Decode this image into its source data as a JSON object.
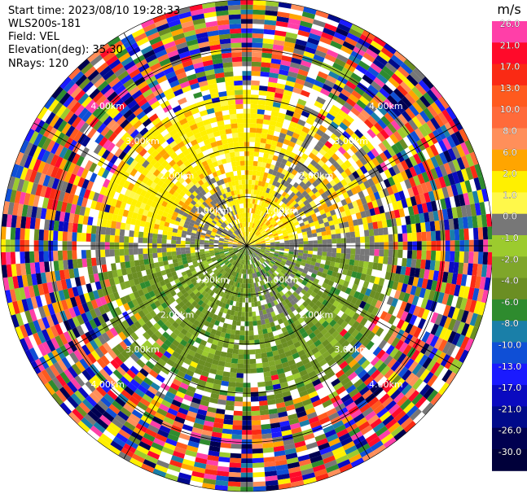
{
  "header": {
    "start_time": "Start time: 2023/08/10 19:28:33",
    "instrument": "WLS200s-181",
    "field": "Field: VEL",
    "elevation": "Elevation(deg): 35.30",
    "nrays": "NRays: 120"
  },
  "colorbar": {
    "unit": "m/s",
    "levels": [
      {
        "label": "26.0",
        "color": "#ff3fa8"
      },
      {
        "label": "21.0",
        "color": "#ff0a2a"
      },
      {
        "label": "17.0",
        "color": "#fa2a14"
      },
      {
        "label": "13.0",
        "color": "#ff5a1e"
      },
      {
        "label": "10.0",
        "color": "#ff6a3a"
      },
      {
        "label": "8.0",
        "color": "#ff8f5a"
      },
      {
        "label": "6.0",
        "color": "#ffa500"
      },
      {
        "label": "2.0",
        "color": "#fff000"
      },
      {
        "label": "1.0",
        "color": "#fff84a"
      },
      {
        "label": "0.0",
        "color": "#777777"
      },
      {
        "label": "-1.0",
        "color": "#9ccb2e"
      },
      {
        "label": "-2.0",
        "color": "#7fa62a"
      },
      {
        "label": "-4.0",
        "color": "#6b8e23"
      },
      {
        "label": "-6.0",
        "color": "#2e8b2e"
      },
      {
        "label": "-8.0",
        "color": "#1a7fa8"
      },
      {
        "label": "-10.0",
        "color": "#0f4fd6"
      },
      {
        "label": "-13.0",
        "color": "#1a1aff"
      },
      {
        "label": "-17.0",
        "color": "#0a0ac0"
      },
      {
        "label": "-21.0",
        "color": "#000a8a"
      },
      {
        "label": "-26.0",
        "color": "#000050"
      },
      {
        "label": "-30.0",
        "color": "#00003a"
      }
    ]
  },
  "chart_data": {
    "type": "heatmap",
    "projection": "polar-ppi",
    "field": "VEL",
    "nrays": 120,
    "elevation_deg": 35.3,
    "range_rings_km": [
      1.0,
      2.0,
      3.0,
      4.0
    ],
    "range_ring_labels": [
      "1.00km",
      "2.00km",
      "3.00km",
      "4.00km"
    ],
    "spoke_angles_deg": [
      0,
      30,
      60,
      90,
      120,
      150,
      180,
      210,
      240,
      270,
      300,
      330
    ],
    "max_range_km": 5.0
  }
}
